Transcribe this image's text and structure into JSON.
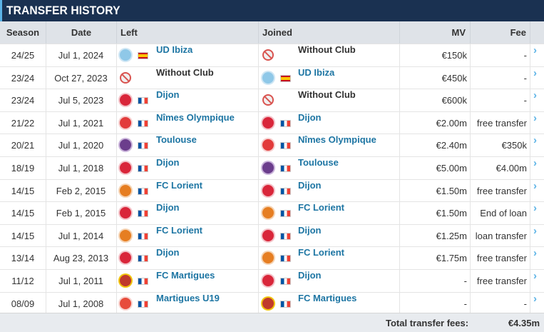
{
  "title": "TRANSFER HISTORY",
  "columns": {
    "season": "Season",
    "date": "Date",
    "left": "Left",
    "joined": "Joined",
    "mv": "MV",
    "fee": "Fee"
  },
  "footer": {
    "label": "Total transfer fees:",
    "value": "€4.35m"
  },
  "clubs": {
    "udibiza": {
      "crest": "#8fc8e8",
      "ring": "#cfe6f4",
      "flag": "es"
    },
    "withoutclub": {
      "crest": "#e8e8e8",
      "ring": "#d9534f",
      "flag": ""
    },
    "dijon": {
      "crest": "#d9263a",
      "ring": "#f3c2c8",
      "flag": "fr"
    },
    "nimes": {
      "crest": "#e23b3b",
      "ring": "#f6d0d0",
      "flag": "fr"
    },
    "toulouse": {
      "crest": "#6b3d8c",
      "ring": "#c9b3da",
      "flag": "fr"
    },
    "lorient": {
      "crest": "#e67e22",
      "ring": "#f5d3b3",
      "flag": "fr"
    },
    "martigues": {
      "crest": "#c0392b",
      "ring": "#f1c40f",
      "flag": "fr"
    },
    "martiguesu19": {
      "crest": "#e74c3c",
      "ring": "#f8d4d0",
      "flag": "fr"
    }
  },
  "transfers": [
    {
      "season": "24/25",
      "date": "Jul 1, 2024",
      "left": "UD Ibiza",
      "left_key": "udibiza",
      "joined": "Without Club",
      "joined_key": "withoutclub",
      "mv": "€150k",
      "fee": "-"
    },
    {
      "season": "23/24",
      "date": "Oct 27, 2023",
      "left": "Without Club",
      "left_key": "withoutclub",
      "joined": "UD Ibiza",
      "joined_key": "udibiza",
      "mv": "€450k",
      "fee": "-"
    },
    {
      "season": "23/24",
      "date": "Jul 5, 2023",
      "left": "Dijon",
      "left_key": "dijon",
      "joined": "Without Club",
      "joined_key": "withoutclub",
      "mv": "€600k",
      "fee": "-"
    },
    {
      "season": "21/22",
      "date": "Jul 1, 2021",
      "left": "Nîmes Olympique",
      "left_key": "nimes",
      "joined": "Dijon",
      "joined_key": "dijon",
      "mv": "€2.00m",
      "fee": "free transfer"
    },
    {
      "season": "20/21",
      "date": "Jul 1, 2020",
      "left": "Toulouse",
      "left_key": "toulouse",
      "joined": "Nîmes Olympique",
      "joined_key": "nimes",
      "mv": "€2.40m",
      "fee": "€350k"
    },
    {
      "season": "18/19",
      "date": "Jul 1, 2018",
      "left": "Dijon",
      "left_key": "dijon",
      "joined": "Toulouse",
      "joined_key": "toulouse",
      "mv": "€5.00m",
      "fee": "€4.00m"
    },
    {
      "season": "14/15",
      "date": "Feb 2, 2015",
      "left": "FC Lorient",
      "left_key": "lorient",
      "joined": "Dijon",
      "joined_key": "dijon",
      "mv": "€1.50m",
      "fee": "free transfer"
    },
    {
      "season": "14/15",
      "date": "Feb 1, 2015",
      "left": "Dijon",
      "left_key": "dijon",
      "joined": "FC Lorient",
      "joined_key": "lorient",
      "mv": "€1.50m",
      "fee": "End of loan"
    },
    {
      "season": "14/15",
      "date": "Jul 1, 2014",
      "left": "FC Lorient",
      "left_key": "lorient",
      "joined": "Dijon",
      "joined_key": "dijon",
      "mv": "€1.25m",
      "fee": "loan transfer"
    },
    {
      "season": "13/14",
      "date": "Aug 23, 2013",
      "left": "Dijon",
      "left_key": "dijon",
      "joined": "FC Lorient",
      "joined_key": "lorient",
      "mv": "€1.75m",
      "fee": "free transfer"
    },
    {
      "season": "11/12",
      "date": "Jul 1, 2011",
      "left": "FC Martigues",
      "left_key": "martigues",
      "joined": "Dijon",
      "joined_key": "dijon",
      "mv": "-",
      "fee": "free transfer"
    },
    {
      "season": "08/09",
      "date": "Jul 1, 2008",
      "left": "Martigues U19",
      "left_key": "martiguesu19",
      "joined": "FC Martigues",
      "joined_key": "martigues",
      "mv": "-",
      "fee": "-"
    }
  ]
}
